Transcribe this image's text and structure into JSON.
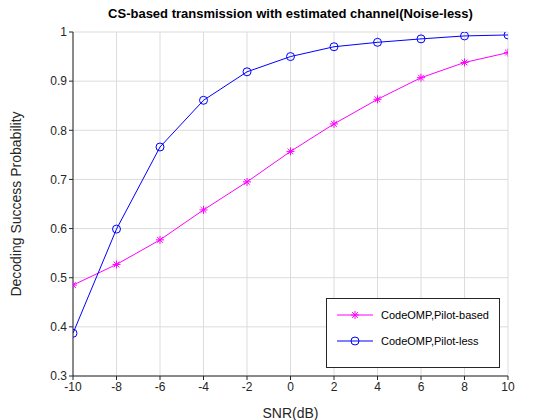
{
  "chart_data": {
    "type": "line",
    "title": "CS-based transmission with estimated channel(Noise-less)",
    "x_label": "SNR(dB)",
    "y_label": "Decoding Success Probability",
    "x": [
      -10,
      -8,
      -6,
      -4,
      -2,
      0,
      2,
      4,
      6,
      8,
      10
    ],
    "series": [
      {
        "name": "CodeOMP,Pilot-based",
        "color": "#ff00ff",
        "marker": "asterisk",
        "line_style": "solid",
        "values": [
          0.485,
          0.527,
          0.577,
          0.638,
          0.695,
          0.757,
          0.813,
          0.863,
          0.907,
          0.938,
          0.958
        ]
      },
      {
        "name": "CodeOMP,Pilot-less",
        "color": "#0000ff",
        "marker": "circle",
        "line_style": "solid",
        "values": [
          0.387,
          0.599,
          0.766,
          0.861,
          0.919,
          0.95,
          0.97,
          0.979,
          0.986,
          0.992,
          0.994
        ]
      }
    ],
    "xlim": [
      -10,
      10
    ],
    "xticks": [
      -10,
      -8,
      -6,
      -4,
      -2,
      0,
      2,
      4,
      6,
      8,
      10
    ],
    "ylim": [
      0.3,
      1
    ],
    "yticks": [
      0.3,
      0.4,
      0.5,
      0.6,
      0.7,
      0.8,
      0.9,
      1
    ],
    "grid": true,
    "legend": "lower right"
  }
}
